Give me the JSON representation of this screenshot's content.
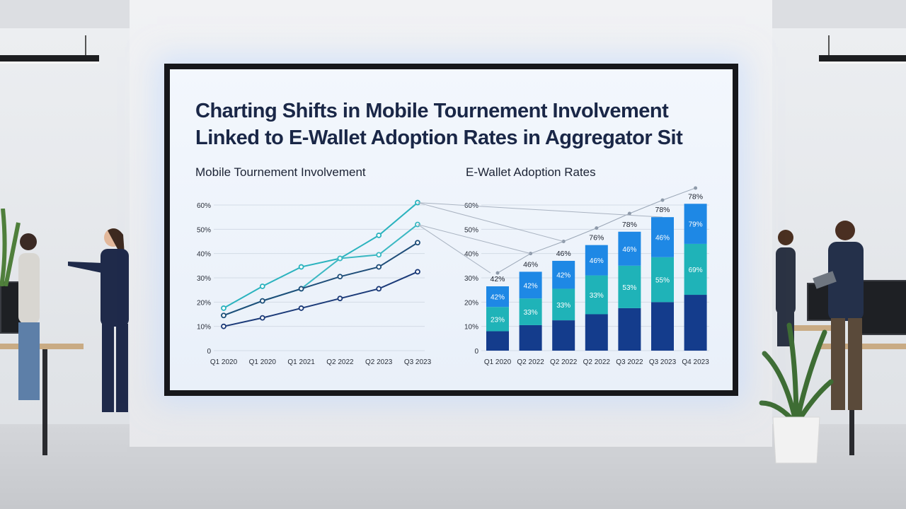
{
  "title": {
    "line1": "Charting Shifts in Mobile Tournement Involvement",
    "line2": "Linked to E-Wallet Adoption Rates in Aggregator Sit"
  },
  "chart_data": [
    {
      "type": "line",
      "title": "Mobile Tournement Involvement",
      "categories": [
        "Q1 2020",
        "Q1 2020",
        "Q1 2021",
        "Q2 2022",
        "Q2 2023",
        "Q3 2023"
      ],
      "yticks": [
        "0",
        "10%",
        "20%",
        "30%",
        "40%",
        "50%",
        "60%"
      ],
      "ylim": [
        0,
        60
      ],
      "grid": true,
      "series": [
        {
          "color": "#2bb3be",
          "values": [
            17.5,
            26.5,
            34.5,
            38,
            47.5,
            61
          ]
        },
        {
          "color": "#3bb8c2",
          "values": [
            14.5,
            20.5,
            25.5,
            38,
            39.5,
            52
          ]
        },
        {
          "color": "#1f4e79",
          "values": [
            14.5,
            20.5,
            25.5,
            30.5,
            34.5,
            44.5
          ]
        },
        {
          "color": "#1b3a78",
          "values": [
            10,
            13.5,
            17.5,
            21.5,
            25.5,
            32.5
          ]
        }
      ]
    },
    {
      "type": "bar",
      "title": "E-Wallet Adoption Rates",
      "categories": [
        "Q1 2020",
        "Q2 2022",
        "Q2 2022",
        "Q2 2022",
        "Q3 2022",
        "Q3 2023",
        "Q4 2023"
      ],
      "yticks": [
        "0",
        "10%",
        "20%",
        "30%",
        "40%",
        "50%",
        "60%"
      ],
      "ylim": [
        0,
        60
      ],
      "grid": true,
      "stacked": true,
      "series": [
        {
          "color": "#143c8c",
          "values": [
            8,
            10.5,
            12.5,
            15,
            17.5,
            20,
            23
          ]
        },
        {
          "color": "#1fb3b8",
          "values": [
            10,
            11,
            13,
            16,
            17.5,
            18.5,
            21
          ],
          "labels": [
            "23%",
            "33%",
            "33%",
            "33%",
            "53%",
            "55%",
            "69%"
          ]
        },
        {
          "color": "#1e88e5",
          "values": [
            8.5,
            11,
            11.5,
            12.5,
            14,
            16.5,
            16.5
          ],
          "labels": [
            "42%",
            "42%",
            "42%",
            "46%",
            "46%",
            "46%",
            "79%"
          ]
        }
      ],
      "top_labels": [
        "42%",
        "46%",
        "46%",
        "76%",
        "78%",
        "78%",
        "78%"
      ],
      "trend": [
        32,
        40,
        45,
        50.5,
        56.5,
        62,
        67
      ]
    }
  ]
}
